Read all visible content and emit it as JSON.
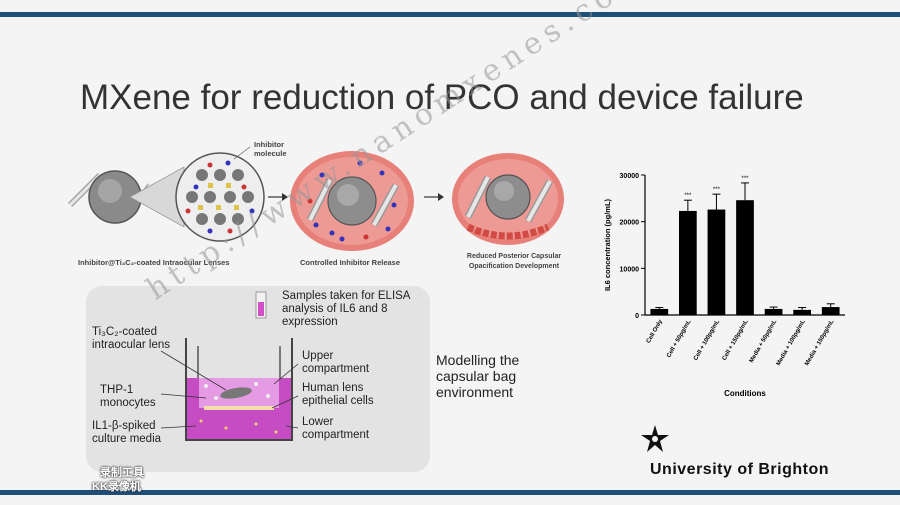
{
  "slide": {
    "title": "MXene for reduction of PCO and device failure",
    "watermark": "http://www.nanomxenes.com"
  },
  "diagram": {
    "inhibitor_label": "Inhibitor molecule",
    "stage1_caption": "Inhibitor@Ti₃C₂-coated Intraocular Lenses",
    "stage2_caption": "Controlled Inhibitor Release",
    "stage3_caption": "Reduced Posterior Capsular Opacification Development"
  },
  "model": {
    "samples": "Samples taken for ELISA analysis of IL6 and 8 expression",
    "lens": "Ti₃C₂-coated intraocular lens",
    "monocytes": "THP-1 monocytes",
    "media": "IL1-β-spiked culture media",
    "upper": "Upper compartment",
    "epithelial": "Human lens epithelial cells",
    "lower": "Lower compartment",
    "modelling": "Modelling the capsular bag environment"
  },
  "branding": {
    "university": "University of Brighton",
    "recorder_line1": "录制工具",
    "recorder_line2": "KK录像机"
  },
  "colors": {
    "accent_bar": "#1f4e79",
    "bar_fill": "#000000"
  },
  "chart_data": {
    "type": "bar",
    "categories": [
      "Cell Only",
      "Cell + 50pg/mL",
      "Cell + 100pg/mL",
      "Cell + 150pg/mL",
      "Media + 50pg/mL",
      "Media + 100pg/mL",
      "Media + 150pg/mL"
    ],
    "values": [
      1300,
      22300,
      22600,
      24600,
      1300,
      1100,
      1700
    ],
    "errors": [
      300,
      2300,
      3300,
      3700,
      400,
      500,
      700
    ],
    "significance": [
      "",
      "***",
      "***",
      "***",
      "",
      "",
      ""
    ],
    "ylabel": "IL6 concentration (pg/mL)",
    "xlabel": "Conditions",
    "ylim": [
      0,
      30000
    ],
    "yticks": [
      "0",
      "10000",
      "20000",
      "30000"
    ],
    "ytick_values": [
      0,
      10000,
      20000,
      30000
    ]
  }
}
